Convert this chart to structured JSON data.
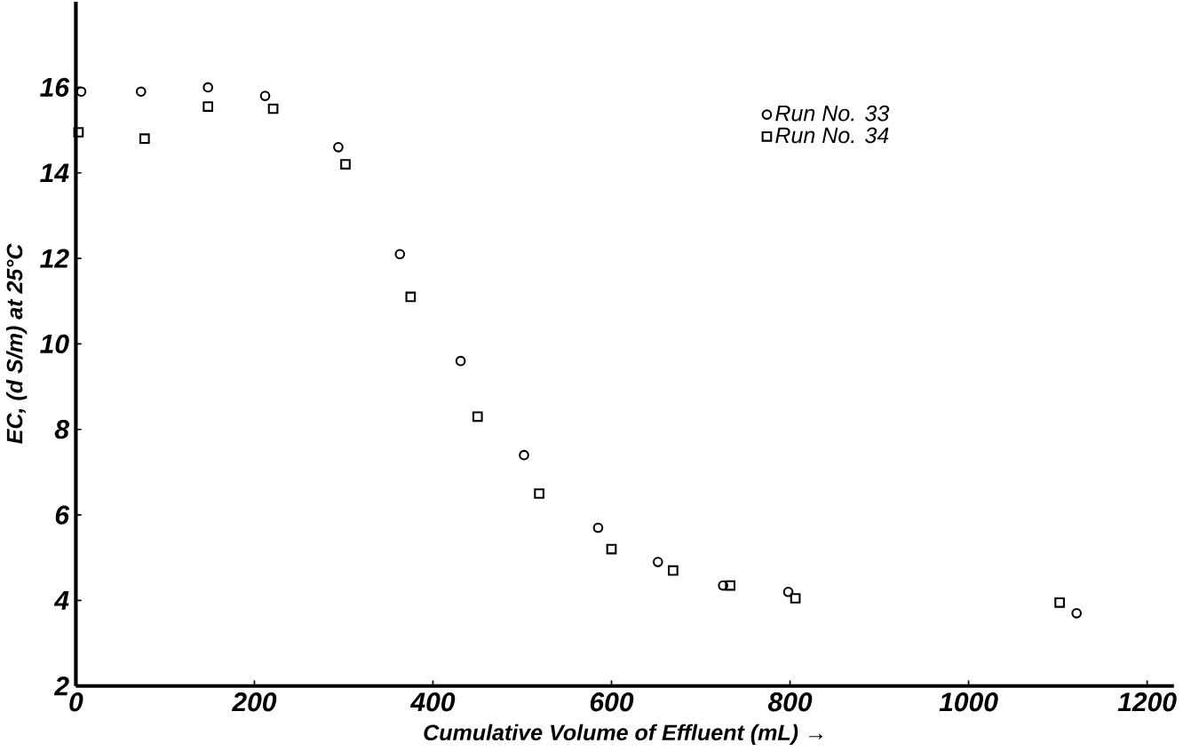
{
  "chart_data": {
    "type": "scatter",
    "xlabel": "Cumulative Volume of Effluent (mL) →",
    "ylabel": "EC, (d S/m) at 25°C",
    "xlim": [
      0,
      1230
    ],
    "ylim": [
      2,
      18
    ],
    "xticks": [
      0,
      200,
      400,
      600,
      800,
      1000,
      1200
    ],
    "yticks": [
      2,
      4,
      6,
      8,
      10,
      12,
      14,
      16
    ],
    "grid": false,
    "legend": "top right",
    "series": [
      {
        "name": "Run No. 33",
        "color": "#000000",
        "marker": "circle",
        "x": [
          6,
          73,
          148,
          212,
          294,
          363,
          431,
          502,
          585,
          652,
          725,
          798,
          1121
        ],
        "values": [
          15.9,
          15.9,
          16.0,
          15.8,
          14.6,
          12.1,
          9.6,
          7.4,
          5.7,
          4.9,
          4.35,
          4.2,
          3.7
        ]
      },
      {
        "name": "Run No. 34",
        "color": "#000000",
        "marker": "square",
        "x": [
          3,
          77,
          148,
          221,
          302,
          375,
          450,
          519,
          600,
          669,
          733,
          806,
          1102
        ],
        "values": [
          14.95,
          14.8,
          15.55,
          15.5,
          14.2,
          11.1,
          8.3,
          6.5,
          5.2,
          4.7,
          4.35,
          4.05,
          3.95
        ]
      }
    ]
  }
}
